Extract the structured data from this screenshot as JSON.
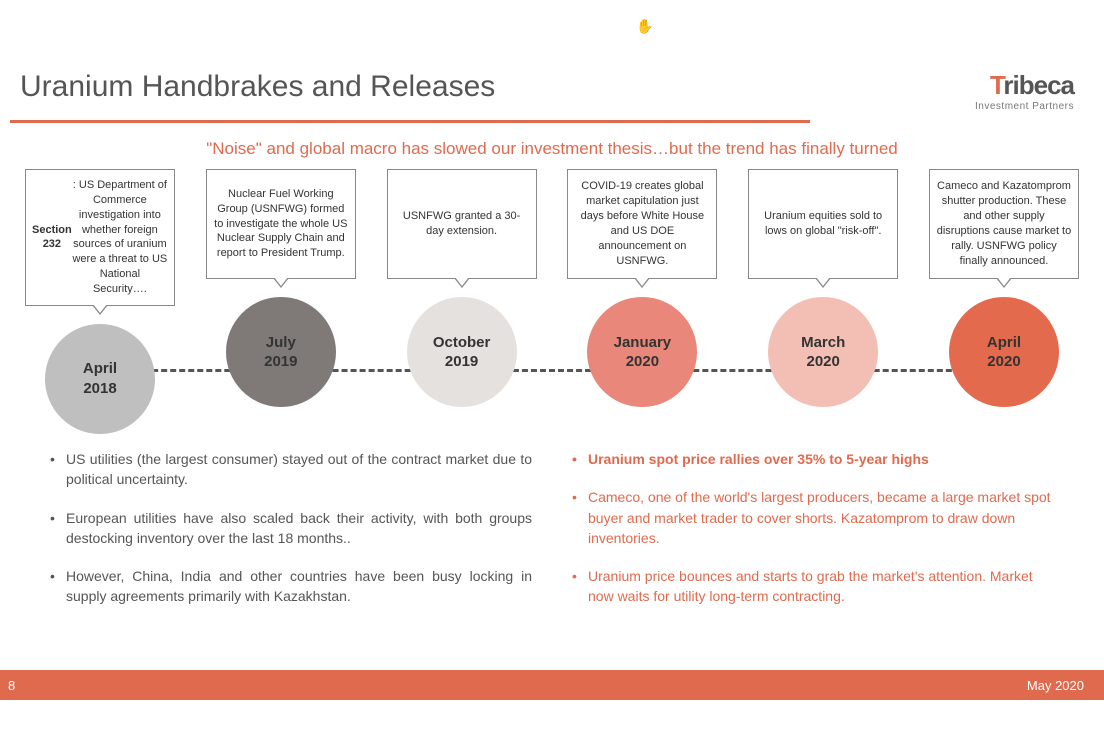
{
  "cursor_glyph": "✋",
  "header": {
    "title": "Uranium Handbrakes and Releases",
    "logo_brand_accent": "T",
    "logo_brand_rest": "ribeca",
    "logo_tagline": "Investment Partners",
    "underline_color": "#e06a4e"
  },
  "subtitle": "\"Noise\" and global macro has slowed our investment thesis…but the trend has finally turned",
  "timeline": {
    "dash_color": "#555555",
    "events": [
      {
        "callout_html": "<b>Section 232</b>: US Department of Commerce investigation into whether foreign sources of uranium were a threat to US National Security….",
        "month": "April",
        "year": "2018",
        "circle_color": "#bfbfbf",
        "text_color": "#333333"
      },
      {
        "callout_html": "Nuclear Fuel Working Group (USNFWG) formed to investigate the whole US Nuclear Supply Chain and report to President Trump.",
        "month": "July",
        "year": "2019",
        "circle_color": "#7f7a78",
        "text_color": "#333333"
      },
      {
        "callout_html": "USNFWG granted a 30- day extension.",
        "month": "October",
        "year": "2019",
        "circle_color": "#e4e1df",
        "text_color": "#333333"
      },
      {
        "callout_html": "COVID-19 creates global market capitulation just days before White House and US DOE announcement on USNFWG.",
        "month": "January",
        "year": "2020",
        "circle_color": "#e9887a",
        "text_color": "#333333"
      },
      {
        "callout_html": "Uranium equities sold to lows on global \"risk-off\".",
        "month": "March",
        "year": "2020",
        "circle_color": "#f3bfb4",
        "text_color": "#333333"
      },
      {
        "callout_html": "Cameco and Kazatomprom shutter production. These and other supply disruptions cause market to rally. USNFWG policy finally announced.",
        "month": "April",
        "year": "2020",
        "circle_color": "#e46a4e",
        "text_color": "#333333"
      }
    ]
  },
  "bullets_left": [
    "US utilities (the largest consumer) stayed out of the contract market due to political uncertainty.",
    "European utilities have also scaled back their activity, with both groups destocking inventory over the last 18 months..",
    "However, China, India and other countries have been busy locking in supply agreements primarily with Kazakhstan."
  ],
  "bullets_right": [
    {
      "text": "Uranium spot price rallies over 35% to 5-year highs",
      "bold": true
    },
    {
      "text": "Cameco, one of the world's largest producers, became a large market spot buyer and market trader to cover shorts. Kazatomprom to draw down inventories.",
      "bold": false
    },
    {
      "text": "Uranium price bounces and starts to grab the market's attention. Market now waits for utility long-term contracting.",
      "bold": false
    }
  ],
  "footer": {
    "page_number": "8",
    "date": "May 2020",
    "bg_color": "#e06a4e"
  },
  "colors": {
    "accent": "#e06a4e",
    "title_text": "#555555",
    "body_text_left": "#555555",
    "body_text_right": "#e06a4e"
  }
}
